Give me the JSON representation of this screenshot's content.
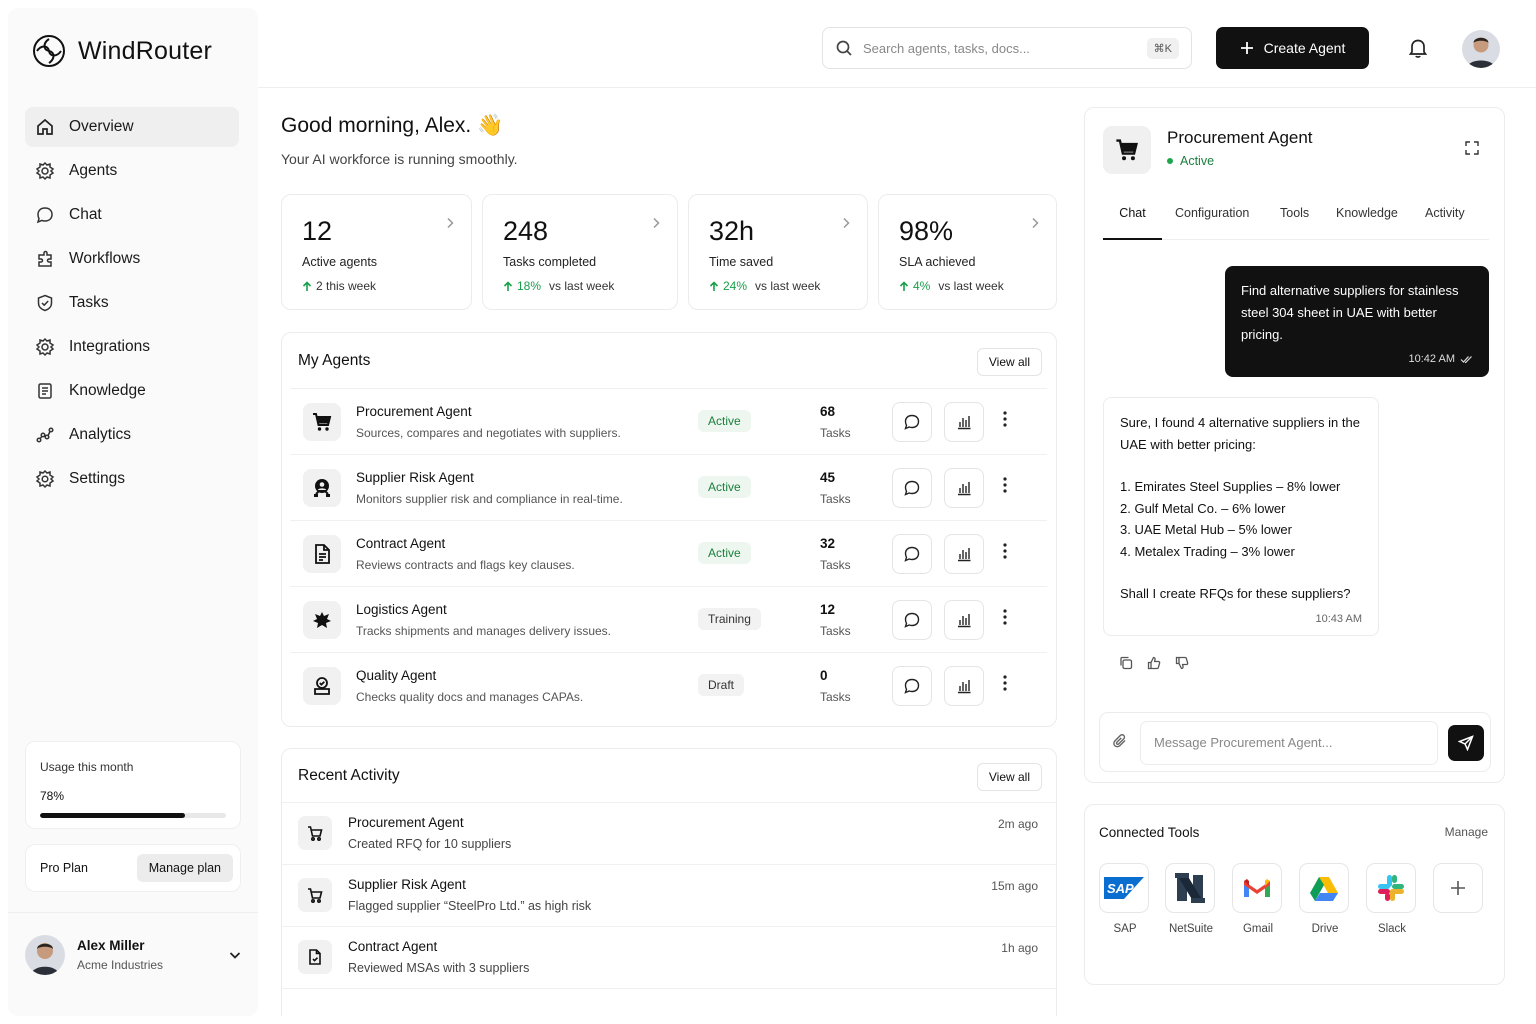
{
  "app": {
    "name": "WindRouter"
  },
  "sidebar": {
    "items": [
      {
        "label": "Overview",
        "icon": "home-icon"
      },
      {
        "label": "Agents",
        "icon": "agents-icon"
      },
      {
        "label": "Chat",
        "icon": "chat-icon"
      },
      {
        "label": "Workflows",
        "icon": "workflows-icon"
      },
      {
        "label": "Tasks",
        "icon": "tasks-icon"
      },
      {
        "label": "Integrations",
        "icon": "integrations-icon"
      },
      {
        "label": "Knowledge",
        "icon": "knowledge-icon"
      },
      {
        "label": "Analytics",
        "icon": "analytics-icon"
      },
      {
        "label": "Settings",
        "icon": "settings-icon"
      }
    ],
    "usage": {
      "title": "Usage this month",
      "percent_label": "78%",
      "fraction": 0.78
    },
    "plan": {
      "name": "Pro Plan",
      "button": "Manage plan"
    },
    "user": {
      "name": "Alex Miller",
      "org": "Acme Industries"
    }
  },
  "topbar": {
    "search_placeholder": "Search agents, tasks, docs...",
    "shortcut": "⌘K",
    "create_button": "Create Agent"
  },
  "greeting": {
    "title": "Good morning, Alex. 👋",
    "subtitle": "Your AI workforce is running smoothly."
  },
  "stats": [
    {
      "value": "12",
      "label": "Active agents",
      "delta": "2 this week",
      "delta_suffix": ""
    },
    {
      "value": "248",
      "label": "Tasks completed",
      "delta": "18%",
      "delta_suffix": "vs last week"
    },
    {
      "value": "32h",
      "label": "Time saved",
      "delta": "24%",
      "delta_suffix": "vs last week"
    },
    {
      "value": "98%",
      "label": "SLA achieved",
      "delta": "4%",
      "delta_suffix": "vs last week"
    }
  ],
  "my_agents": {
    "title": "My Agents",
    "view_all": "View all",
    "rows": [
      {
        "name": "Procurement Agent",
        "desc": "Sources, compares and negotiates with suppliers.",
        "status": "Active",
        "count": "68",
        "count_label": "Tasks"
      },
      {
        "name": "Supplier Risk Agent",
        "desc": "Monitors supplier risk and compliance in real-time.",
        "status": "Active",
        "count": "45",
        "count_label": "Tasks"
      },
      {
        "name": "Contract Agent",
        "desc": "Reviews contracts and flags key clauses.",
        "status": "Active",
        "count": "32",
        "count_label": "Tasks"
      },
      {
        "name": "Logistics Agent",
        "desc": "Tracks shipments and manages delivery issues.",
        "status": "Training",
        "count": "12",
        "count_label": "Tasks"
      },
      {
        "name": "Quality Agent",
        "desc": "Checks quality docs and manages CAPAs.",
        "status": "Draft",
        "count": "0",
        "count_label": "Tasks"
      }
    ]
  },
  "recent_activity": {
    "title": "Recent Activity",
    "view_all": "View all",
    "rows": [
      {
        "name": "Procurement Agent",
        "desc": "Created RFQ for 10 suppliers",
        "time": "2m ago"
      },
      {
        "name": "Supplier Risk Agent",
        "desc": "Flagged supplier “SteelPro Ltd.” as high risk",
        "time": "15m ago"
      },
      {
        "name": "Contract Agent",
        "desc": "Reviewed MSAs with 3 suppliers",
        "time": "1h ago"
      }
    ]
  },
  "panel": {
    "title": "Procurement Agent",
    "status": "Active",
    "tabs": [
      "Chat",
      "Configuration",
      "Tools",
      "Knowledge",
      "Activity"
    ],
    "user_message": {
      "text": "Find alternative suppliers for stainless steel 304 sheet in UAE with better pricing.",
      "time": "10:42 AM"
    },
    "bot_message": {
      "intro": "Sure, I found 4 alternative suppliers in the UAE with better pricing:",
      "items": [
        "1. Emirates Steel Supplies – 8% lower",
        "2. Gulf Metal Co. – 6% lower",
        "3. UAE Metal Hub – 5% lower",
        "4. Metalex Trading – 3% lower"
      ],
      "outro": "Shall I create RFQs for these suppliers?",
      "time": "10:43 AM"
    },
    "composer_placeholder": "Message Procurement Agent..."
  },
  "connected_tools": {
    "title": "Connected Tools",
    "manage": "Manage",
    "tools": [
      "SAP",
      "NetSuite",
      "Gmail",
      "Drive",
      "Slack"
    ]
  },
  "colors": {
    "accent": "#111111",
    "success": "#1a9e4b",
    "badge_active_bg": "#eef7ef"
  }
}
